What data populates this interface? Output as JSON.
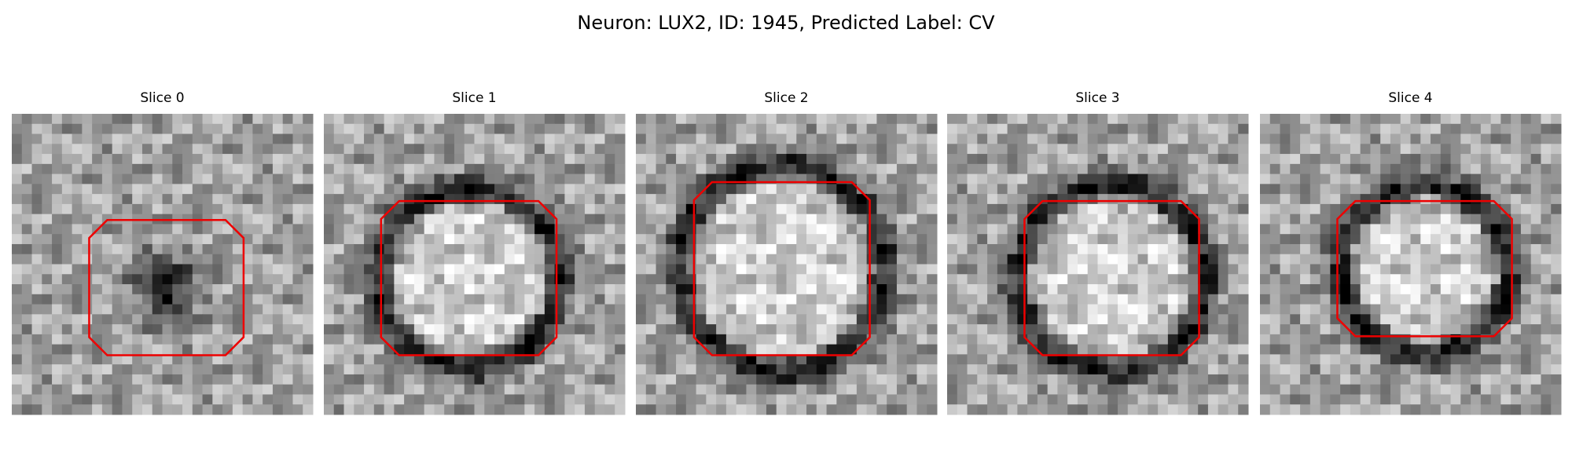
{
  "title": "Neuron: LUX2, ID: 1945, Predicted Label: CV",
  "panels": [
    {
      "title": "Slice 0"
    },
    {
      "title": "Slice 1"
    },
    {
      "title": "Slice 2"
    },
    {
      "title": "Slice 3"
    },
    {
      "title": "Slice 4"
    }
  ]
}
